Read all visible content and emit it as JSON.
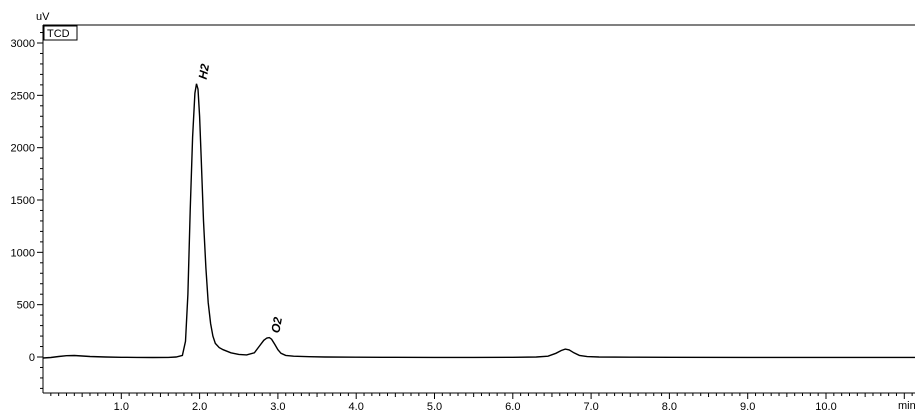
{
  "chart_data": {
    "type": "line",
    "detector_label": "TCD",
    "y_unit": "uV",
    "x_unit": "min",
    "xlim": [
      0.0,
      11.15
    ],
    "ylim": [
      -350,
      3150
    ],
    "x_ticks": [
      1.0,
      2.0,
      3.0,
      4.0,
      5.0,
      6.0,
      7.0,
      8.0,
      9.0,
      10.0
    ],
    "x_tick_labels": [
      "1.0",
      "2.0",
      "3.0",
      "4.0",
      "5.0",
      "6.0",
      "7.0",
      "8.0",
      "9.0",
      "10.0"
    ],
    "y_ticks": [
      0,
      500,
      1000,
      1500,
      2000,
      2500,
      3000
    ],
    "y_tick_labels": [
      "0",
      "500",
      "1000",
      "1500",
      "2000",
      "2500",
      "3000"
    ],
    "peaks": [
      {
        "label": "H2",
        "retention_time": 1.96,
        "height": 2610
      },
      {
        "label": "O2",
        "retention_time": 2.89,
        "height": 185
      },
      {
        "label": "",
        "retention_time": 6.67,
        "height": 75
      }
    ],
    "series": [
      {
        "x": [
          0.0,
          0.1,
          0.2,
          0.3,
          0.4,
          0.5,
          0.6,
          0.8,
          1.0,
          1.2,
          1.4,
          1.6,
          1.7,
          1.78,
          1.82,
          1.85,
          1.88,
          1.91,
          1.94,
          1.96,
          1.98,
          2.0,
          2.02,
          2.05,
          2.08,
          2.11,
          2.14,
          2.17,
          2.2,
          2.25,
          2.3,
          2.4,
          2.5,
          2.6,
          2.7,
          2.76,
          2.82,
          2.86,
          2.89,
          2.92,
          2.96,
          3.0,
          3.04,
          3.1,
          3.2,
          3.4,
          3.6,
          4.0,
          4.5,
          5.0,
          5.5,
          6.0,
          6.3,
          6.45,
          6.55,
          6.62,
          6.67,
          6.72,
          6.78,
          6.85,
          6.95,
          7.1,
          7.5,
          8.0,
          9.0,
          10.0,
          11.15
        ],
        "y": [
          -10,
          -5,
          5,
          12,
          14,
          10,
          5,
          0,
          -3,
          -4,
          -5,
          -4,
          0,
          15,
          150,
          600,
          1400,
          2100,
          2520,
          2610,
          2560,
          2300,
          1900,
          1300,
          850,
          520,
          320,
          200,
          130,
          90,
          70,
          40,
          25,
          20,
          40,
          100,
          160,
          182,
          185,
          170,
          120,
          70,
          35,
          15,
          8,
          3,
          0,
          -2,
          -3,
          -4,
          -4,
          -3,
          0,
          8,
          35,
          62,
          75,
          68,
          40,
          15,
          4,
          0,
          -2,
          -3,
          -4,
          -4,
          -4
        ]
      }
    ]
  }
}
